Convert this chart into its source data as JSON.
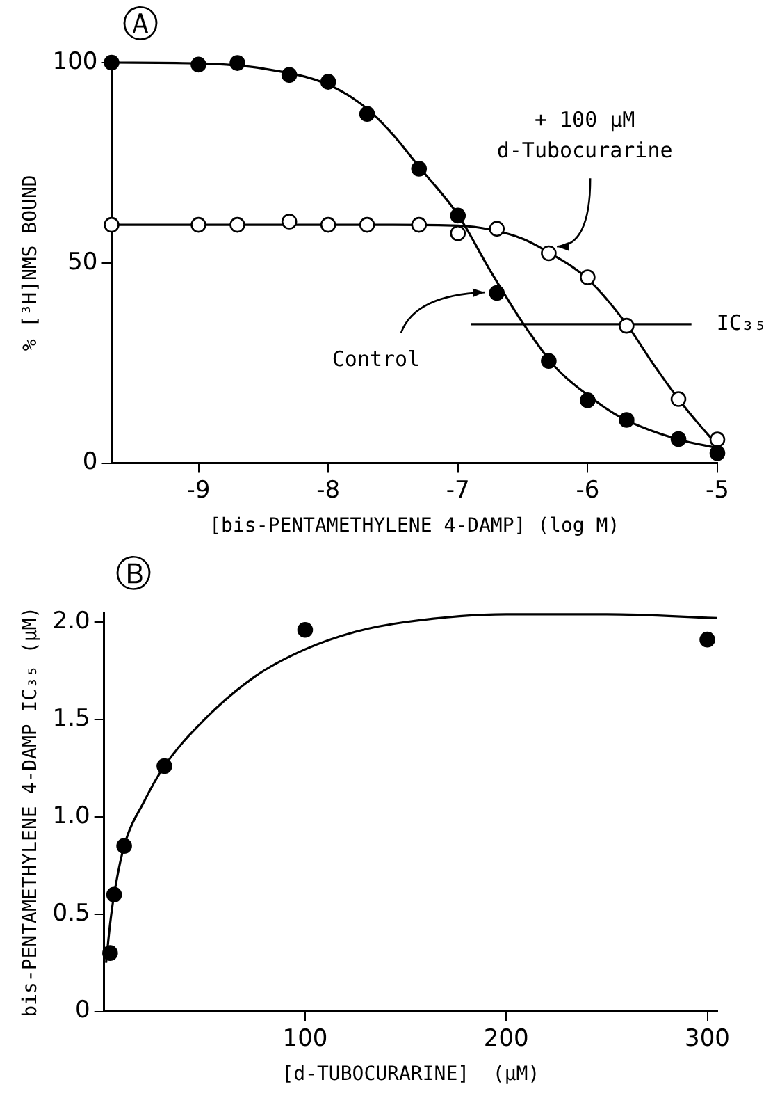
{
  "chart_data": [
    {
      "type": "scatter",
      "title": "Ⓐ",
      "xlabel": "[bis-PENTAMETHYLENE 4-DAMP] (log M)",
      "ylabel": "% [³H]NMS BOUND",
      "xlim": [
        -9.67,
        -5
      ],
      "xticks": [
        -9,
        -8,
        -7,
        -6,
        -5
      ],
      "ylim": [
        0,
        100
      ],
      "yticks": [
        0,
        50,
        100
      ],
      "grid": false,
      "legend": false,
      "series": [
        {
          "type": "scatter",
          "marker": "circle",
          "color": "#000000",
          "x": [
            -9.67,
            -9,
            -8.7,
            -8.3,
            -8,
            -7.7,
            -7.3,
            -7,
            -6.7,
            -6.3,
            -6,
            -5.7,
            -5.3,
            -5
          ],
          "values": [
            100,
            99.5,
            99.9,
            96.9,
            95.2,
            87.2,
            73.5,
            61.8,
            42.5,
            25.5,
            15.7,
            10.8,
            6.0,
            2.5
          ]
        },
        {
          "type": "scatter",
          "marker": "circle",
          "color": "#ffffff",
          "x": [
            -9.67,
            -9,
            -8.7,
            -8.3,
            -8,
            -7.7,
            -7.3,
            -7,
            -6.7,
            -6.3,
            -6,
            -5.7,
            -5.3,
            -5
          ],
          "values": [
            59.5,
            59.5,
            59.5,
            60.3,
            59.5,
            59.5,
            59.5,
            57.4,
            58.5,
            52.4,
            46.4,
            34.3,
            16.0,
            5.9
          ]
        },
        {
          "type": "line",
          "marker": "none",
          "color": "#000000",
          "x": [
            -9.67,
            -9,
            -8.5,
            -8,
            -7.7,
            -7.5,
            -7.3,
            -7,
            -6.75,
            -6.5,
            -6.25,
            -6,
            -5.75,
            -5.5,
            -5.25,
            -5
          ],
          "values": [
            100,
            99.8,
            98.5,
            94.5,
            88.5,
            82,
            74,
            62,
            48,
            35,
            24,
            17,
            11.5,
            8,
            5.5,
            3.8
          ]
        },
        {
          "type": "line",
          "marker": "none",
          "color": "#000000",
          "x": [
            -9.67,
            -9,
            -8,
            -7.5,
            -7,
            -6.75,
            -6.5,
            -6.3,
            -6,
            -5.7,
            -5.5,
            -5.3,
            -5.15,
            -5
          ],
          "values": [
            59.5,
            59.5,
            59.5,
            59.5,
            59.3,
            58.3,
            56,
            52.6,
            46,
            34.7,
            25,
            16,
            10,
            4.5
          ]
        },
        {
          "type": "line",
          "marker": "none",
          "name": "IC₃₅",
          "color": "#000000",
          "x": [
            -6.9,
            -5.2
          ],
          "values": [
            34.7,
            34.7
          ]
        }
      ],
      "annotations": [
        {
          "text": "+ 100 µM d-Tubocurarine",
          "x": -6.28,
          "y": 52
        },
        {
          "text": "Control",
          "x": -6.72,
          "y": 43
        }
      ]
    },
    {
      "type": "scatter",
      "title": "Ⓑ",
      "xlabel": "[d-TUBOCURARINE]  (µM)",
      "ylabel": "bis-PENTAMETHYLENE 4-DAMP IC₃₅ (µM)",
      "xlim": [
        0,
        305
      ],
      "xticks": [
        100,
        200,
        300
      ],
      "ylim": [
        0,
        2.05
      ],
      "yticks": [
        0,
        0.5,
        {
          "value": 1,
          "label": "1.0"
        },
        1.5,
        {
          "value": 2,
          "label": "2.0"
        }
      ],
      "grid": false,
      "legend": false,
      "series": [
        {
          "type": "scatter",
          "marker": "circle",
          "color": "#000000",
          "x": [
            3,
            5,
            10,
            30,
            100,
            300
          ],
          "values": [
            0.3,
            0.6,
            0.85,
            1.26,
            1.96,
            1.91
          ]
        },
        {
          "type": "line",
          "marker": "none",
          "color": "#000000",
          "x": [
            1,
            3,
            5,
            10,
            20,
            30,
            50,
            75,
            100,
            125,
            150,
            200,
            250,
            305
          ],
          "values": [
            0.25,
            0.45,
            0.6,
            0.85,
            1.08,
            1.26,
            1.5,
            1.72,
            1.86,
            1.95,
            2.0,
            2.04,
            2.04,
            2.02
          ]
        }
      ]
    }
  ]
}
